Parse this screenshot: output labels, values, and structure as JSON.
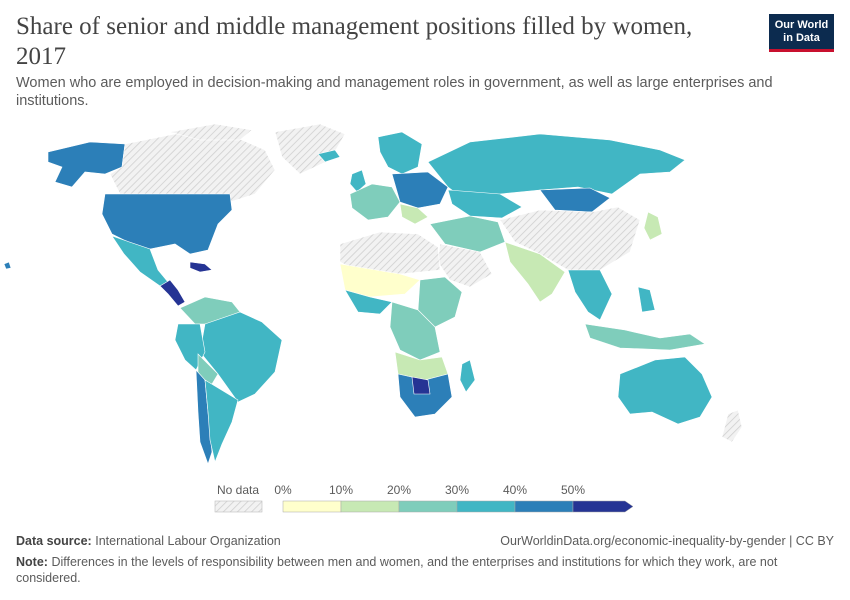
{
  "title": "Share of senior and middle management positions filled by women, 2017",
  "subtitle": "Women who are employed in decision-making and management roles in government, as well as large enterprises and institutions.",
  "logo": {
    "line1": "Our World",
    "line2": "in Data"
  },
  "legend": {
    "no_data_label": "No data",
    "ticks": [
      "0%",
      "10%",
      "20%",
      "30%",
      "40%",
      "50%"
    ]
  },
  "colors": {
    "no_data": "#e4e4e4",
    "scale": [
      "#ffffcc",
      "#c7e9b4",
      "#7fcdbb",
      "#41b6c4",
      "#2c7fb8",
      "#253494"
    ]
  },
  "footer": {
    "source_label": "Data source:",
    "source": "International Labour Organization",
    "url": "OurWorldinData.org/economic-inequality-by-gender | CC BY",
    "note_label": "Note:",
    "note": "Differences in the levels of responsibility between men and women, and the enterprises and institutions for which they work, are not considered."
  }
}
